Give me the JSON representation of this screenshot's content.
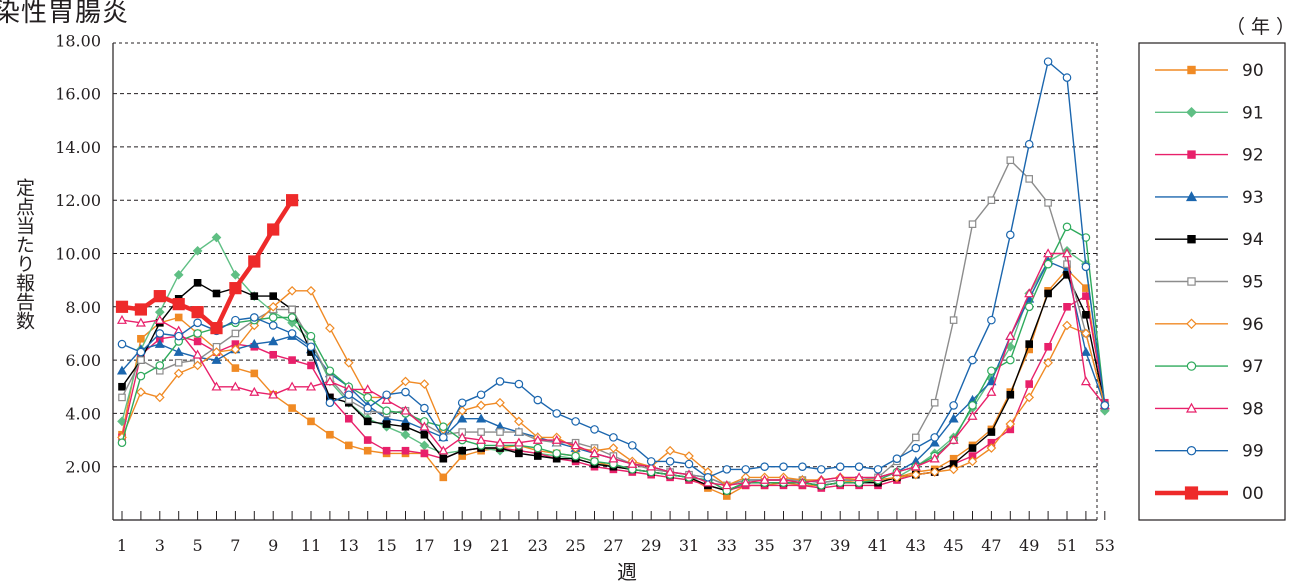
{
  "chart_data": {
    "type": "line",
    "title": "染性胃腸炎",
    "unit_label": "（年）",
    "xlabel": "週",
    "ylabel": "定点当たり報告数",
    "ylim": [
      0,
      18
    ],
    "xlim": [
      1,
      53
    ],
    "y_ticks": [
      "2.00",
      "4.00",
      "6.00",
      "8.00",
      "10.00",
      "12.00",
      "14.00",
      "16.00",
      "18.00"
    ],
    "x_ticks": [
      "1",
      "3",
      "5",
      "7",
      "9",
      "11",
      "13",
      "15",
      "17",
      "19",
      "21",
      "23",
      "25",
      "27",
      "29",
      "31",
      "33",
      "35",
      "37",
      "39",
      "41",
      "43",
      "45",
      "47",
      "49",
      "51",
      "53"
    ],
    "grid": true,
    "legend_position": "right",
    "series": [
      {
        "name": "90",
        "color": "#f08a24",
        "marker": "square",
        "filled": true,
        "values": [
          3.2,
          6.8,
          7.4,
          7.6,
          7.0,
          6.4,
          5.7,
          5.5,
          4.7,
          4.2,
          3.7,
          3.2,
          2.8,
          2.6,
          2.5,
          2.5,
          2.5,
          1.6,
          2.4,
          2.6,
          2.7,
          2.8,
          2.6,
          2.5,
          2.4,
          2.2,
          2.0,
          1.9,
          1.8,
          1.7,
          1.6,
          1.2,
          0.9,
          1.3,
          1.3,
          1.4,
          1.3,
          1.3,
          1.4,
          1.5,
          1.4,
          1.6,
          1.8,
          1.9,
          2.3,
          2.8,
          3.4,
          4.8,
          6.4,
          8.6,
          9.4,
          8.7,
          4.3
        ]
      },
      {
        "name": "91",
        "color": "#5fbf84",
        "marker": "diamond",
        "filled": true,
        "values": [
          3.7,
          6.4,
          7.8,
          9.2,
          10.1,
          10.6,
          9.2,
          8.4,
          7.8,
          7.4,
          6.7,
          5.2,
          4.4,
          3.8,
          3.5,
          3.2,
          2.8,
          2.5,
          2.6,
          2.7,
          2.6,
          2.6,
          2.5,
          2.4,
          2.3,
          2.1,
          2.0,
          1.9,
          1.8,
          1.7,
          1.6,
          1.5,
          1.1,
          1.4,
          1.4,
          1.4,
          1.4,
          1.3,
          1.4,
          1.4,
          1.5,
          1.6,
          2.0,
          2.5,
          3.1,
          4.2,
          5.3,
          6.5,
          8.5,
          9.7,
          10.1,
          9.6,
          4.1
        ]
      },
      {
        "name": "92",
        "color": "#e8206a",
        "marker": "square",
        "filled": true,
        "values": [
          3.1,
          6.2,
          6.8,
          6.9,
          6.7,
          6.3,
          6.6,
          6.5,
          6.2,
          6.0,
          5.8,
          4.6,
          3.8,
          3.0,
          2.6,
          2.6,
          2.5,
          2.3,
          2.6,
          2.7,
          2.7,
          2.6,
          2.5,
          2.3,
          2.2,
          2.0,
          1.9,
          1.8,
          1.7,
          1.6,
          1.5,
          1.3,
          1.1,
          1.3,
          1.3,
          1.3,
          1.3,
          1.2,
          1.3,
          1.3,
          1.3,
          1.5,
          1.7,
          1.8,
          2.1,
          2.4,
          2.9,
          3.4,
          5.1,
          6.5,
          8.0,
          8.4,
          4.4
        ]
      },
      {
        "name": "93",
        "color": "#1b66ae",
        "marker": "triangle",
        "filled": true,
        "values": [
          5.6,
          6.4,
          6.6,
          6.3,
          6.1,
          6.0,
          6.4,
          6.6,
          6.7,
          6.9,
          6.4,
          5.5,
          5.0,
          4.3,
          3.8,
          3.7,
          3.4,
          3.1,
          3.8,
          3.8,
          3.5,
          3.3,
          3.1,
          2.9,
          2.7,
          2.5,
          2.3,
          2.1,
          2.0,
          1.8,
          1.7,
          1.6,
          1.3,
          1.5,
          1.5,
          1.5,
          1.5,
          1.4,
          1.5,
          1.5,
          1.6,
          1.8,
          2.2,
          2.9,
          3.8,
          4.5,
          5.2,
          6.9,
          8.3,
          9.7,
          9.4,
          6.3,
          4.3
        ]
      },
      {
        "name": "94",
        "color": "#000000",
        "marker": "square",
        "filled": true,
        "values": [
          5.0,
          6.0,
          7.4,
          8.3,
          8.9,
          8.5,
          8.7,
          8.4,
          8.4,
          7.9,
          6.3,
          4.6,
          4.4,
          3.7,
          3.6,
          3.5,
          3.2,
          2.3,
          2.6,
          2.7,
          2.7,
          2.5,
          2.4,
          2.3,
          2.3,
          2.1,
          2.0,
          1.9,
          1.8,
          1.7,
          1.6,
          1.3,
          1.1,
          1.4,
          1.4,
          1.4,
          1.4,
          1.3,
          1.4,
          1.4,
          1.4,
          1.6,
          1.7,
          1.8,
          2.1,
          2.7,
          3.3,
          4.7,
          6.6,
          8.5,
          9.2,
          7.7,
          4.3
        ]
      },
      {
        "name": "95",
        "color": "#8c8c8c",
        "marker": "square",
        "filled": false,
        "values": [
          4.6,
          6.0,
          5.6,
          5.9,
          6.0,
          6.5,
          7.0,
          7.5,
          7.9,
          7.9,
          6.7,
          5.3,
          4.5,
          4.1,
          4.0,
          4.1,
          3.6,
          3.2,
          3.3,
          3.3,
          3.3,
          3.3,
          3.0,
          2.9,
          2.9,
          2.7,
          2.4,
          2.1,
          1.9,
          1.8,
          1.7,
          1.6,
          1.3,
          1.5,
          1.5,
          1.5,
          1.5,
          1.4,
          1.5,
          1.5,
          1.6,
          2.2,
          3.1,
          4.4,
          7.5,
          11.1,
          12.0,
          13.5,
          12.8,
          11.9,
          9.6,
          7.0,
          4.3
        ]
      },
      {
        "name": "96",
        "color": "#f08a24",
        "marker": "diamond",
        "filled": false,
        "values": [
          3.1,
          4.8,
          4.6,
          5.5,
          5.8,
          6.3,
          6.4,
          7.3,
          8.0,
          8.6,
          8.6,
          7.2,
          5.9,
          4.6,
          4.6,
          5.2,
          5.1,
          3.4,
          4.1,
          4.3,
          4.4,
          3.7,
          3.1,
          3.1,
          2.7,
          2.6,
          2.7,
          2.2,
          2.0,
          2.6,
          2.4,
          1.8,
          1.3,
          1.6,
          1.6,
          1.6,
          1.5,
          1.5,
          1.6,
          1.5,
          1.5,
          1.6,
          1.7,
          1.8,
          1.9,
          2.2,
          2.7,
          3.6,
          4.6,
          5.9,
          7.3,
          7.0,
          4.3
        ]
      },
      {
        "name": "97",
        "color": "#2eaa5c",
        "marker": "circle",
        "filled": false,
        "values": [
          2.9,
          5.4,
          5.8,
          6.7,
          7.0,
          7.2,
          7.4,
          7.5,
          7.6,
          7.6,
          6.9,
          5.6,
          5.0,
          4.6,
          4.1,
          4.0,
          3.7,
          3.5,
          3.0,
          2.8,
          2.8,
          2.8,
          2.7,
          2.5,
          2.4,
          2.2,
          2.1,
          1.9,
          1.8,
          1.7,
          1.6,
          1.5,
          1.1,
          1.4,
          1.4,
          1.4,
          1.4,
          1.3,
          1.4,
          1.4,
          1.5,
          1.8,
          2.0,
          2.4,
          3.0,
          4.3,
          5.6,
          6.0,
          8.0,
          9.6,
          11.0,
          10.6,
          4.3
        ]
      },
      {
        "name": "98",
        "color": "#e8206a",
        "marker": "triangle",
        "filled": false,
        "values": [
          7.5,
          7.4,
          7.5,
          7.1,
          6.2,
          5.0,
          5.0,
          4.8,
          4.7,
          5.0,
          5.0,
          5.2,
          4.9,
          4.9,
          4.5,
          4.1,
          3.5,
          2.6,
          3.1,
          3.0,
          2.9,
          2.9,
          3.0,
          3.0,
          2.8,
          2.5,
          2.3,
          2.1,
          2.0,
          1.8,
          1.7,
          1.4,
          1.3,
          1.4,
          1.5,
          1.5,
          1.4,
          1.5,
          1.6,
          1.6,
          1.6,
          1.8,
          2.0,
          2.3,
          3.0,
          3.9,
          4.8,
          6.9,
          8.5,
          10.0,
          10.0,
          5.2,
          4.3
        ]
      },
      {
        "name": "99",
        "color": "#1b66ae",
        "marker": "circle",
        "filled": false,
        "values": [
          6.6,
          6.3,
          7.0,
          6.9,
          7.4,
          7.1,
          7.5,
          7.6,
          7.3,
          7.0,
          6.5,
          4.4,
          4.7,
          4.2,
          4.7,
          4.8,
          4.2,
          3.1,
          4.4,
          4.7,
          5.2,
          5.1,
          4.5,
          4.0,
          3.7,
          3.4,
          3.1,
          2.8,
          2.2,
          2.2,
          2.1,
          1.6,
          1.9,
          1.9,
          2.0,
          2.0,
          2.0,
          1.9,
          2.0,
          2.0,
          1.9,
          2.3,
          2.7,
          3.1,
          4.3,
          6.0,
          7.5,
          10.7,
          14.1,
          17.2,
          16.6,
          9.5,
          4.3
        ]
      },
      {
        "name": "00",
        "color": "#ee2a2a",
        "marker": "square",
        "filled": true,
        "bold": true,
        "values": [
          8.0,
          7.9,
          8.4,
          8.1,
          7.8,
          7.2,
          8.7,
          9.7,
          10.9,
          12.0
        ]
      }
    ]
  }
}
